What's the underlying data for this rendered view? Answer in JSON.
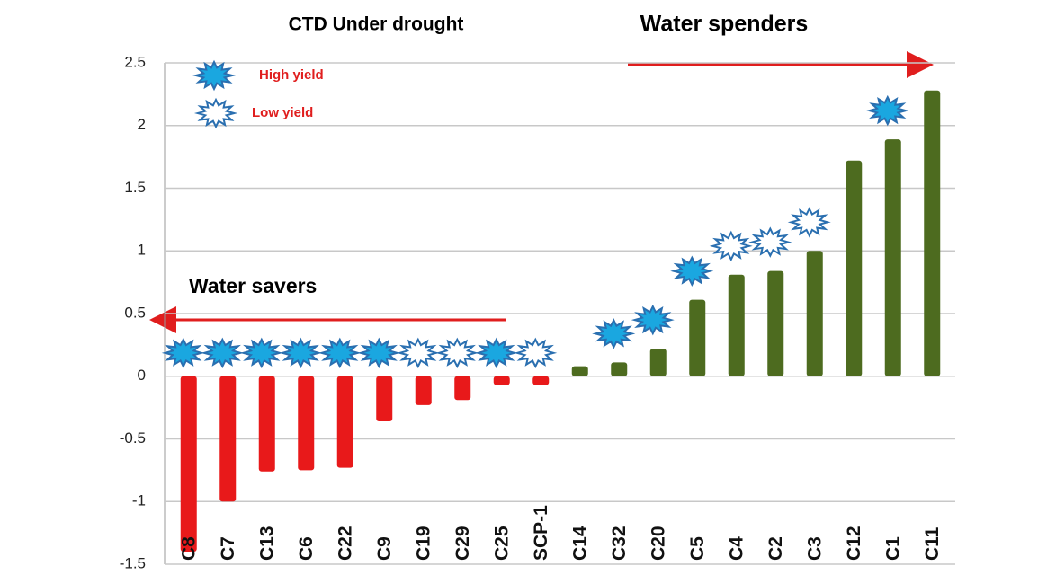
{
  "chart_data": {
    "type": "bar",
    "title": "CTD  Under drought",
    "annotations": [
      "Water spenders",
      "Water savers"
    ],
    "categories": [
      "C8",
      "C7",
      "C13",
      "C6",
      "C22",
      "C9",
      "C19",
      "C29",
      "C25",
      "SCP-1",
      "C14",
      "C32",
      "C20",
      "C5",
      "C4",
      "C2",
      "C3",
      "C12",
      "C1",
      "C11"
    ],
    "values": [
      -1.4,
      -1.0,
      -0.76,
      -0.75,
      -0.73,
      -0.36,
      -0.23,
      -0.19,
      -0.07,
      -0.07,
      0.08,
      0.11,
      0.22,
      0.61,
      0.81,
      0.84,
      1.0,
      1.72,
      1.89,
      2.28
    ],
    "colors": [
      "#e8191a",
      "#e8191a",
      "#e8191a",
      "#e8191a",
      "#e8191a",
      "#e8191a",
      "#e8191a",
      "#e8191a",
      "#e8191a",
      "#e8191a",
      "#4d6b1f",
      "#4d6b1f",
      "#4d6b1f",
      "#4d6b1f",
      "#4d6b1f",
      "#4d6b1f",
      "#4d6b1f",
      "#4d6b1f",
      "#4d6b1f",
      "#4d6b1f"
    ],
    "yield_legend": [
      "High yield",
      "Low yield"
    ],
    "yield": [
      0,
      0,
      0,
      0,
      0,
      0,
      1,
      1,
      0,
      1,
      null,
      0,
      0,
      0,
      1,
      1,
      1,
      null,
      0,
      null
    ],
    "ylim": [
      -1.5,
      2.5
    ],
    "yticks": [
      -1.5,
      -1,
      -0.5,
      0,
      0.5,
      1,
      1.5,
      2,
      2.5
    ],
    "grid": true
  }
}
